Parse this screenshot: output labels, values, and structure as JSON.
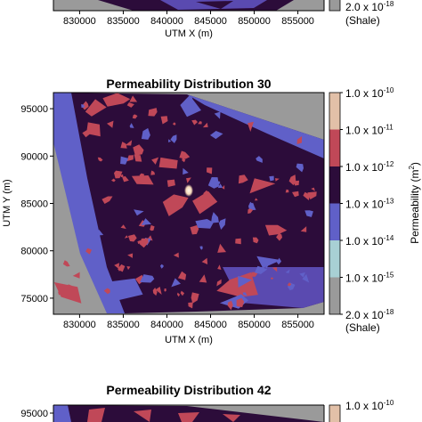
{
  "chart_data": [
    {
      "type": "heatmap",
      "title": "",
      "xlabel": "UTM X (m)",
      "ylabel": "",
      "x_ticks": [
        "830000",
        "835000",
        "840000",
        "845000",
        "850000",
        "855000"
      ],
      "x_tick_values": [
        830000,
        835000,
        840000,
        845000,
        850000,
        855000
      ],
      "xlim": [
        827000,
        858000
      ],
      "colorbar_labels": [
        {
          "base": "2.0 x 10",
          "exp": "-18",
          "level": 0
        },
        {
          "note": "(Shale)",
          "level": 0
        }
      ]
    },
    {
      "type": "heatmap",
      "title": "Permeability Distribution 30",
      "xlabel": "UTM X (m)",
      "ylabel": "UTM Y (m)",
      "x_ticks": [
        "830000",
        "835000",
        "840000",
        "845000",
        "850000",
        "855000"
      ],
      "x_tick_values": [
        830000,
        835000,
        840000,
        845000,
        850000,
        855000
      ],
      "y_ticks": [
        "95000",
        "90000",
        "85000",
        "80000",
        "75000"
      ],
      "y_tick_values": [
        95000,
        90000,
        85000,
        80000,
        75000
      ],
      "xlim": [
        827000,
        858000
      ],
      "ylim": [
        73300,
        96700
      ],
      "colorbar_title": "Permeability (m",
      "colorbar_title_sup": "2",
      "colorbar_title_end": ")",
      "colorbar_levels": [
        {
          "base": "1.0 x 10",
          "exp": "-10"
        },
        {
          "base": "1.0 x 10",
          "exp": "-11"
        },
        {
          "base": "1.0 x 10",
          "exp": "-12"
        },
        {
          "base": "1.0 x 10",
          "exp": "-13"
        },
        {
          "base": "1.0 x 10",
          "exp": "-14"
        },
        {
          "base": "1.0 x 10",
          "exp": "-15"
        },
        {
          "base": "2.0 x 10",
          "exp": "-18"
        }
      ],
      "colorbar_note": "(Shale)",
      "colorbar_colors": [
        "#e2c0a8",
        "#c04858",
        "#2c0c3a",
        "#6060c8",
        "#a8d0d4",
        "#9a9a9a"
      ]
    },
    {
      "type": "heatmap",
      "title": "Permeability Distribution 42",
      "x_ticks": [],
      "y_ticks": [
        "95000"
      ],
      "y_tick_values": [
        95000
      ],
      "colorbar_labels": [
        {
          "base": "1.0 x 10",
          "exp": "-10"
        }
      ]
    }
  ],
  "colors": {
    "background_outside": "#9a9a9a",
    "matrix": "#2c0c3a",
    "high_perm": "#c04858",
    "low_perm": "#6060c8",
    "hot_spot": "#f4e0c4"
  }
}
